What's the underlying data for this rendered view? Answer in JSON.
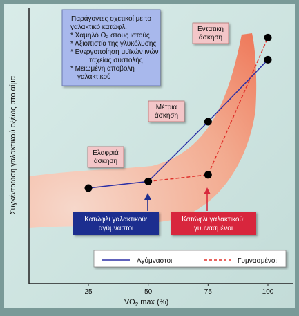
{
  "chart_data": {
    "type": "line",
    "ylabel": "Συγκέντρωση γαλακτικού οξέως στο αίμα",
    "xlabel_parts": {
      "main": "VO",
      "sub": "2",
      "rest": " max (%)"
    },
    "x_ticks": [
      25,
      50,
      75,
      100
    ],
    "xlim": [
      14,
      106
    ],
    "ylim": [
      0,
      100
    ],
    "grid": false,
    "legend_position": "bottom-right",
    "series": [
      {
        "name": "Αγύμναστοι",
        "style": "solid",
        "color": "#2b2fa6",
        "x": [
          25,
          50,
          75,
          100
        ],
        "y": [
          30,
          33,
          60,
          88
        ]
      },
      {
        "name": "Γυμνασμένοι",
        "style": "dashed",
        "color": "#e0302a",
        "x": [
          50,
          75,
          100
        ],
        "y": [
          33,
          36,
          98
        ]
      }
    ],
    "markers": [
      {
        "x": 25,
        "y": 30
      },
      {
        "x": 50,
        "y": 33
      },
      {
        "x": 75,
        "y": 36
      },
      {
        "x": 75,
        "y": 60
      },
      {
        "x": 100,
        "y": 88
      },
      {
        "x": 100,
        "y": 98
      }
    ],
    "band_color": "#f26c4a",
    "factors_box": {
      "lines": [
        "Παράγοντες σχετικοί με το",
        "γαλακτικό κατώφλι",
        "* Χαμηλό O₂ στους ιστούς",
        "* Αξιοπιστία της γλυκόλυσης",
        "* Ενεργοποίηση μυϊκών ινών",
        "ταχείας συστολής",
        "* Μειωμένη αποβολή",
        "γαλακτικού"
      ],
      "color": "#a8b8ec"
    },
    "intensity_labels": [
      {
        "lines": [
          "Εντατική",
          "άσκηση"
        ]
      },
      {
        "lines": [
          "Μέτρια",
          "άσκηση"
        ]
      },
      {
        "lines": [
          "Ελαφριά",
          "άσκηση"
        ]
      }
    ],
    "threshold_labels": [
      {
        "lines": [
          "Κατώφλι γαλακτικού:",
          "αγύμναστοι"
        ],
        "color": "#1f2f8f"
      },
      {
        "lines": [
          "Κατώφλι γαλακτικού:",
          "γυμνασμένοι"
        ],
        "color": "#d8283c"
      }
    ]
  }
}
